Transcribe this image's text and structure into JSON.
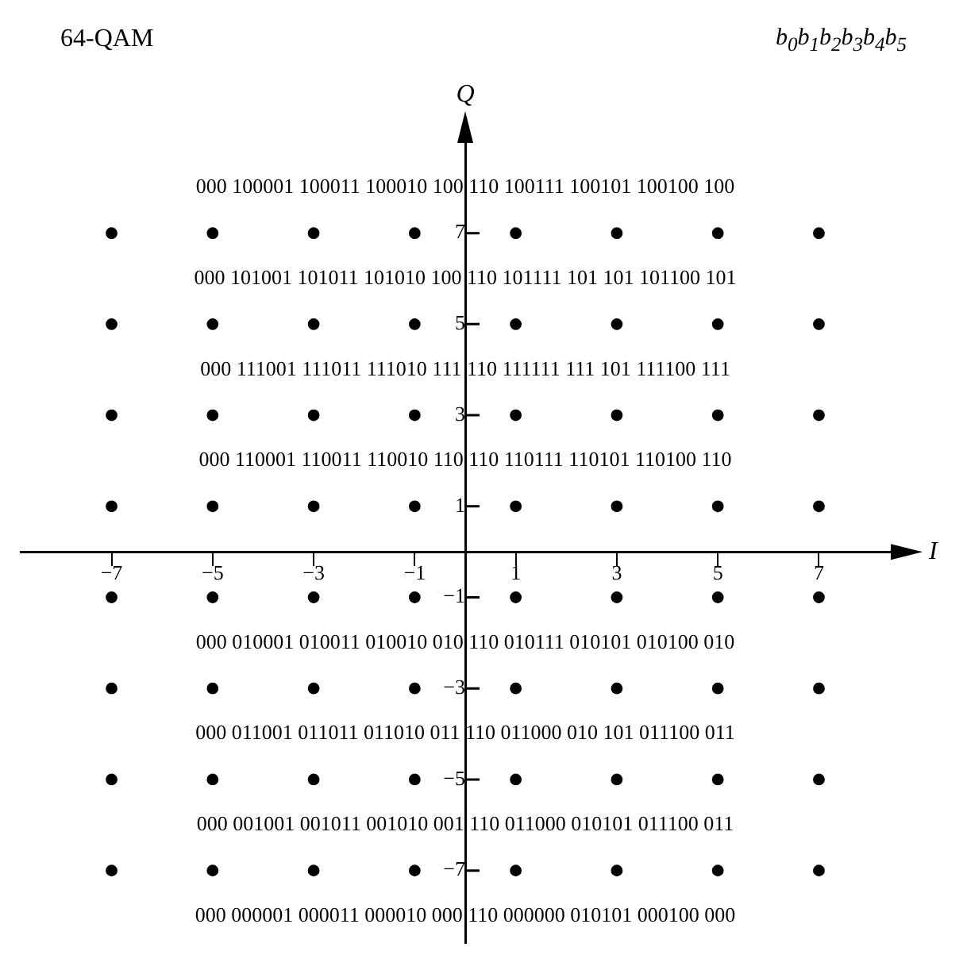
{
  "chart_data": {
    "type": "scatter",
    "title": "64-QAM",
    "subtitle": "b$_{0}$b$_{1}$b$_{2}$b$_{3}$b$_{4}$b$_{5}$",
    "xlabel": "I",
    "ylabel": "Q",
    "x": [
      -7,
      -5,
      -3,
      -1,
      1,
      3,
      5,
      7,
      -7,
      -5,
      -3,
      -1,
      1,
      3,
      5,
      7,
      -7,
      -5,
      -3,
      -1,
      1,
      3,
      5,
      7,
      -7,
      -5,
      -3,
      -1,
      1,
      3,
      5,
      7,
      -7,
      -5,
      -3,
      -1,
      1,
      3,
      5,
      7,
      -7,
      -5,
      -3,
      -1,
      1,
      3,
      5,
      7,
      -7,
      -5,
      -3,
      -1,
      1,
      3,
      5,
      7,
      -7,
      -5,
      -3,
      -1,
      1,
      3,
      5,
      7
    ],
    "series": [
      {
        "color": "#000000",
        "values": [
          7,
          7,
          7,
          7,
          7,
          7,
          7,
          7,
          5,
          5,
          5,
          5,
          5,
          5,
          5,
          5,
          3,
          3,
          3,
          3,
          3,
          3,
          3,
          3,
          1,
          1,
          1,
          1,
          1,
          1,
          1,
          1,
          -1,
          -1,
          -1,
          -1,
          -1,
          -1,
          -1,
          -1,
          -3,
          -3,
          -3,
          -3,
          -3,
          -3,
          -3,
          -3,
          -5,
          -5,
          -5,
          -5,
          -5,
          -5,
          -5,
          -5,
          -7,
          -7,
          -7,
          -7,
          -7,
          -7,
          -7,
          -7
        ]
      }
    ],
    "marker": "circle",
    "xlim": [
      -8.8,
      8.8
    ],
    "ylim": [
      -8.6,
      9.4
    ],
    "xticks": [
      -7,
      -5,
      -3,
      -1,
      1,
      3,
      5,
      7
    ],
    "yticks": [
      -7,
      -5,
      -3,
      -1,
      1,
      3,
      5,
      7
    ],
    "annotations": [
      "000 100001 100011 100010 100 110 100111 100101 100100 100",
      "000 101001 101011 101010 100 110 101111 101 101 101100 101",
      "000 111001 111011 111010 111 110 111111 111 101 111100 111",
      "000 110001 110011 110010 110 110 110111 110101 110100 110",
      "000 010001 010011 010010 010 110 010111 010101 010100 010",
      "000 011001 011011 011010 011 110 011000 010 101 011100 011",
      "000 001001 001011 001010 001 110 011000 010101 011100 011",
      "000 000001 000011 000010 000 110 000000 010101 000100 000"
    ]
  }
}
